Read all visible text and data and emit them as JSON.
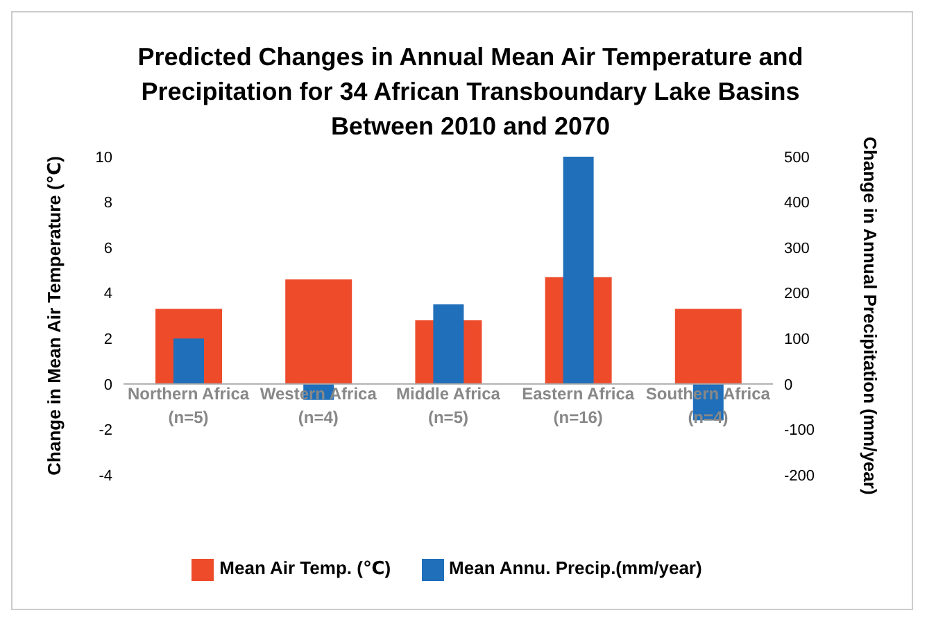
{
  "chart_data": {
    "type": "bar",
    "title": "Predicted Changes in Annual Mean Air Temperature and Precipitation for 34 African Transboundary Lake Basins Between 2010 and 2070",
    "ylabel": "Change in Mean Air Temperature (℃)",
    "y2label": "Change in Annual Precipitation (mm/year)",
    "categories": [
      "Northern Africa (n=5)",
      "Western Africa (n=4)",
      "Middle Africa (n=5)",
      "Eastern Africa (n=16)",
      "Southern Africa (n=4)"
    ],
    "series": [
      {
        "name": "Mean Air Temp. (℃)",
        "color": "#ee4b2b",
        "values": [
          3.3,
          4.6,
          2.8,
          4.7,
          3.3
        ]
      },
      {
        "name": "Mean Annu. Precip.(mm/year)",
        "color": "#1f6fba",
        "values": [
          100,
          -35,
          175,
          500,
          -80
        ],
        "axis": "y2"
      }
    ],
    "ylim": [
      -4,
      10
    ],
    "yticks": [
      -4,
      -2,
      0,
      2,
      4,
      6,
      8,
      10
    ],
    "y2lim": [
      -200,
      500
    ],
    "y2ticks": [
      -200,
      -100,
      0,
      100,
      200,
      300,
      400,
      500
    ],
    "legend": "bottom"
  }
}
